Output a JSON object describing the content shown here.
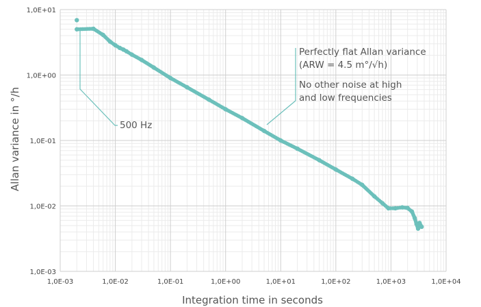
{
  "chart_data": {
    "type": "scatter",
    "title": "",
    "xlabel": "Integration time in seconds",
    "ylabel": "Allan variance in °/h",
    "x_scale": "log",
    "y_scale": "log",
    "xlim": [
      0.001,
      10000
    ],
    "ylim": [
      0.001,
      10
    ],
    "grid": true,
    "legend": "none",
    "marker_color": "#6cc0bb",
    "x_tick_labels": [
      "1,0E-03",
      "1,0E-02",
      "1,0E-01",
      "1,0E+00",
      "1,0E+01",
      "1,0E+02",
      "1,0E+03",
      "1,0E+04"
    ],
    "y_tick_labels": [
      "1,0E-03",
      "1,0E-02",
      "1,0E-01",
      "1,0E+00",
      "1,0E+01"
    ],
    "series": [
      {
        "points": [
          [
            0.002,
            6.9
          ],
          [
            0.002,
            5.0
          ],
          [
            0.004,
            5.1
          ],
          [
            0.006,
            4.1
          ],
          [
            0.008,
            3.25
          ],
          [
            0.01,
            2.85
          ],
          [
            0.012,
            2.6
          ],
          [
            0.014,
            2.45
          ],
          [
            0.016,
            2.3
          ],
          [
            0.02,
            2.05
          ],
          [
            0.03,
            1.7
          ],
          [
            0.05,
            1.3
          ],
          [
            0.1,
            0.9
          ],
          [
            0.2,
            0.65
          ],
          [
            0.5,
            0.42
          ],
          [
            1,
            0.3
          ],
          [
            2,
            0.22
          ],
          [
            5,
            0.14
          ],
          [
            10,
            0.1
          ],
          [
            20,
            0.075
          ],
          [
            50,
            0.05
          ],
          [
            100,
            0.036
          ],
          [
            200,
            0.026
          ],
          [
            300,
            0.021
          ],
          [
            500,
            0.014
          ],
          [
            700,
            0.011
          ],
          [
            900,
            0.0092
          ],
          [
            1200,
            0.0092
          ],
          [
            1600,
            0.0095
          ],
          [
            2000,
            0.0093
          ],
          [
            2400,
            0.0082
          ],
          [
            2700,
            0.0065
          ],
          [
            2900,
            0.0053
          ],
          [
            3100,
            0.0045
          ],
          [
            3300,
            0.0055
          ],
          [
            3600,
            0.0048
          ]
        ]
      }
    ],
    "annotations": [
      {
        "text": "500 Hz"
      },
      {
        "lines": [
          "Perfectly flat Allan variance",
          "(ARW = 4.5 m°/√h)"
        ]
      },
      {
        "lines": [
          "No other noise at high",
          "and low frequencies"
        ]
      }
    ]
  }
}
